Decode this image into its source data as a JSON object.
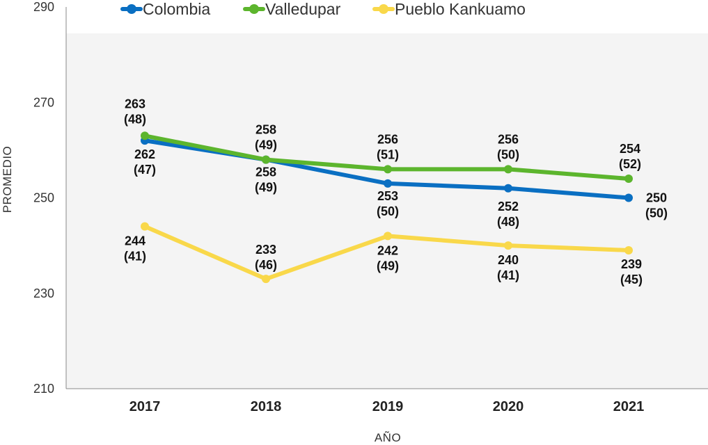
{
  "chart_data": {
    "type": "line",
    "title": "",
    "xlabel": "AÑO",
    "ylabel": "PROMEDIO",
    "categories": [
      "2017",
      "2018",
      "2019",
      "2020",
      "2021"
    ],
    "ylim": [
      210,
      290
    ],
    "yticks": [
      210,
      230,
      250,
      270,
      290
    ],
    "grid": false,
    "legend_position": "top",
    "series": [
      {
        "name": "Colombia",
        "color": "#0a6fc2",
        "values": [
          262,
          258,
          253,
          252,
          250
        ],
        "labels": [
          [
            "262",
            "(47)"
          ],
          [
            "258",
            "(49)"
          ],
          [
            "253",
            "(50)"
          ],
          [
            "252",
            "(48)"
          ],
          [
            "250",
            "(50)"
          ]
        ]
      },
      {
        "name": "Valledupar",
        "color": "#5cb52d",
        "values": [
          263,
          258,
          256,
          256,
          254
        ],
        "labels": [
          [
            "263",
            "(48)"
          ],
          [
            "258",
            "(49)"
          ],
          [
            "256",
            "(51)"
          ],
          [
            "256",
            "(50)"
          ],
          [
            "254",
            "(52)"
          ]
        ]
      },
      {
        "name": "Pueblo Kankuamo",
        "color": "#f9d84a",
        "values": [
          244,
          233,
          242,
          240,
          239
        ],
        "labels": [
          [
            "244",
            "(41)"
          ],
          [
            "233",
            "(46)"
          ],
          [
            "242",
            "(49)"
          ],
          [
            "240",
            "(41)"
          ],
          [
            "239",
            "(45)"
          ]
        ]
      }
    ]
  }
}
